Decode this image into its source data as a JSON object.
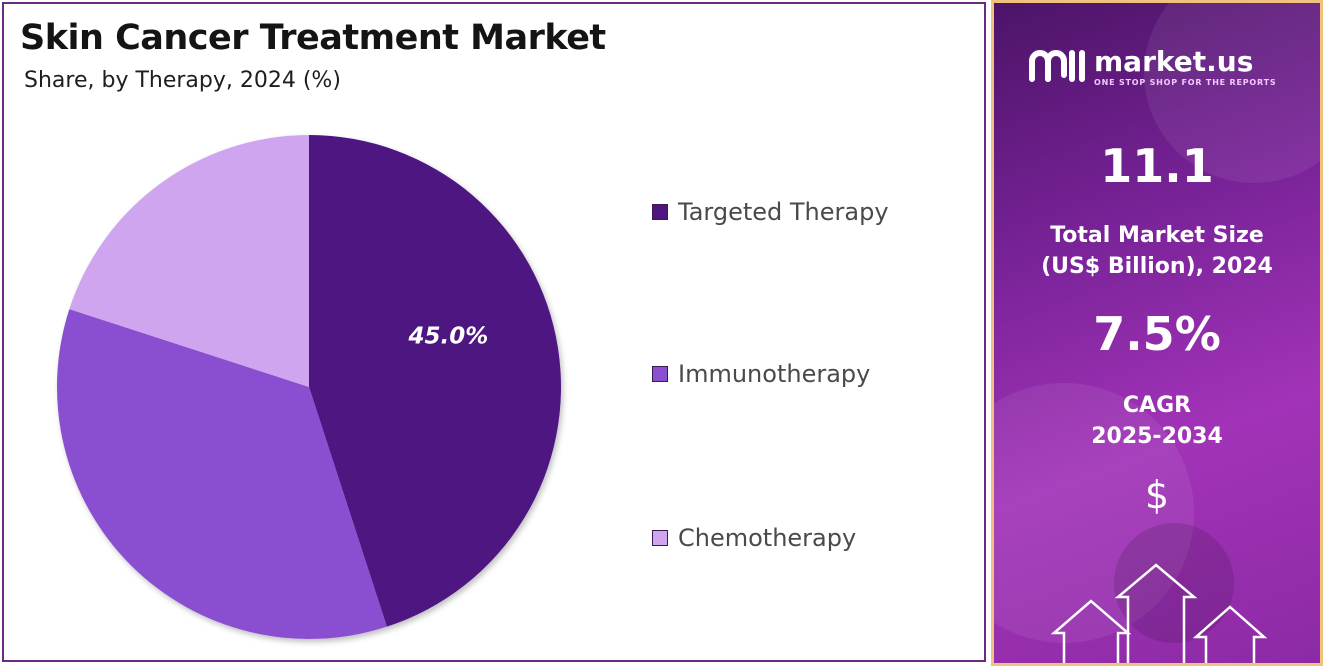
{
  "chart_data": {
    "type": "pie",
    "title": "Skin Cancer Treatment Market",
    "subtitle": "Share, by Therapy, 2024 (%)",
    "categories": [
      "Targeted Therapy",
      "Immunotherapy",
      "Chemotherapy"
    ],
    "values": [
      45.0,
      35.0,
      20.0
    ],
    "data_labels": [
      "45.0%",
      "",
      ""
    ],
    "colors": [
      "#4e1580",
      "#8a50d0",
      "#cfa5ef"
    ],
    "legend_position": "right"
  },
  "sidebar": {
    "brand_name": "market.us",
    "brand_tagline": "ONE STOP SHOP FOR THE REPORTS",
    "market_size_value": "11.1",
    "market_size_label_line1": "Total Market Size",
    "market_size_label_line2": "(US$ Billion), 2024",
    "cagr_value": "7.5%",
    "cagr_label_line1": "CAGR",
    "cagr_label_line2": "2025-2034",
    "currency_symbol": "$",
    "colors": {
      "panel_border": "#f1c27d",
      "panel_top": "#4c1468",
      "panel_bottom": "#a233b8"
    }
  }
}
